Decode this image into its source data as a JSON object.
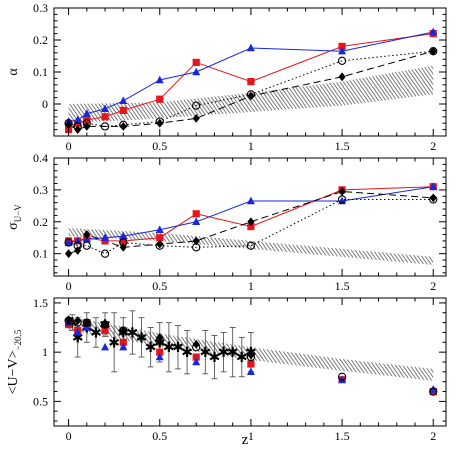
{
  "figure": {
    "shared_xlabel": "z",
    "colors": {
      "red": "#e8141c",
      "blue": "#1428e0",
      "black": "#000000",
      "hatch": "#444444"
    }
  },
  "chart_data": [
    {
      "type": "line",
      "ylabel": "α",
      "xlim": [
        -0.08,
        2.07
      ],
      "ylim": [
        -0.1,
        0.3
      ],
      "xticks": [
        0,
        0.5,
        1,
        1.5,
        2
      ],
      "xtick_labels": [
        "0",
        "0.5",
        "1",
        "1.5",
        "2"
      ],
      "yticks": [
        0,
        0.1,
        0.2,
        0.3
      ],
      "ytick_labels": [
        "0",
        "0.1",
        "0.2",
        "0.3"
      ],
      "band": {
        "x": [
          0,
          0.5,
          1,
          1.5,
          2
        ],
        "upper": [
          0.0,
          0.005,
          0.035,
          0.07,
          0.12
        ],
        "lower": [
          -0.06,
          -0.045,
          -0.025,
          -0.005,
          0.03
        ]
      },
      "series": [
        {
          "color": "red",
          "marker": "square",
          "line": "solid",
          "x": [
            0,
            0.05,
            0.1,
            0.2,
            0.3,
            0.5,
            0.7,
            1.0,
            1.5,
            2.0
          ],
          "y": [
            -0.08,
            -0.06,
            -0.05,
            -0.04,
            -0.02,
            0.015,
            0.13,
            0.07,
            0.18,
            0.22
          ]
        },
        {
          "color": "blue",
          "marker": "triangle",
          "line": "solid",
          "x": [
            0,
            0.05,
            0.1,
            0.2,
            0.3,
            0.5,
            0.7,
            1.0,
            1.5,
            2.0
          ],
          "y": [
            -0.055,
            -0.05,
            -0.03,
            -0.015,
            0.01,
            0.075,
            0.1,
            0.175,
            0.165,
            0.225
          ]
        },
        {
          "color": "black",
          "marker": "circle",
          "line": "dotted",
          "x": [
            0,
            0.05,
            0.1,
            0.2,
            0.3,
            0.5,
            0.7,
            1.0,
            1.5,
            2.0
          ],
          "y": [
            -0.06,
            -0.07,
            -0.06,
            -0.07,
            -0.065,
            -0.055,
            -0.005,
            0.03,
            0.135,
            0.165
          ]
        },
        {
          "color": "black",
          "marker": "diamond",
          "line": "dashed",
          "x": [
            0,
            0.05,
            0.1,
            0.3,
            0.5,
            0.7,
            1.0,
            1.5,
            2.0
          ],
          "y": [
            -0.065,
            -0.08,
            -0.07,
            -0.07,
            -0.06,
            -0.045,
            0.025,
            0.085,
            0.165
          ]
        }
      ]
    },
    {
      "type": "line",
      "ylabel": "σ",
      "ylabel_sub": "U−V",
      "xlim": [
        -0.08,
        2.07
      ],
      "ylim": [
        0.03,
        0.4
      ],
      "xticks": [
        0,
        0.5,
        1,
        1.5,
        2
      ],
      "xtick_labels": [
        "0",
        "0.5",
        "1",
        "1.5",
        "2"
      ],
      "yticks": [
        0.1,
        0.2,
        0.3,
        0.4
      ],
      "ytick_labels": [
        "0.1",
        "0.2",
        "0.3",
        "0.4"
      ],
      "band": {
        "x": [
          0,
          0.5,
          1,
          1.5,
          2
        ],
        "upper": [
          0.18,
          0.165,
          0.14,
          0.115,
          0.09
        ],
        "lower": [
          0.155,
          0.14,
          0.115,
          0.09,
          0.065
        ]
      },
      "series": [
        {
          "color": "red",
          "marker": "square",
          "line": "solid",
          "x": [
            0,
            0.05,
            0.1,
            0.2,
            0.3,
            0.5,
            0.7,
            1.0,
            1.5,
            2.0
          ],
          "y": [
            0.14,
            0.14,
            0.15,
            0.14,
            0.14,
            0.15,
            0.225,
            0.185,
            0.3,
            0.31
          ]
        },
        {
          "color": "blue",
          "marker": "triangle",
          "line": "solid",
          "x": [
            0,
            0.05,
            0.1,
            0.2,
            0.3,
            0.5,
            0.7,
            1.0,
            1.5,
            2.0
          ],
          "y": [
            0.135,
            0.14,
            0.145,
            0.15,
            0.155,
            0.175,
            0.2,
            0.265,
            0.265,
            0.31
          ]
        },
        {
          "color": "black",
          "marker": "circle",
          "line": "dotted",
          "x": [
            0,
            0.05,
            0.1,
            0.2,
            0.3,
            0.5,
            0.7,
            1.0,
            1.5,
            2.0
          ],
          "y": [
            0.135,
            0.125,
            0.125,
            0.1,
            0.135,
            0.125,
            0.12,
            0.125,
            0.27,
            0.27
          ]
        },
        {
          "color": "black",
          "marker": "diamond",
          "line": "dashed",
          "x": [
            0,
            0.05,
            0.1,
            0.3,
            0.5,
            0.7,
            1.0,
            1.5,
            2.0
          ],
          "y": [
            0.1,
            0.11,
            0.16,
            0.12,
            0.13,
            0.14,
            0.2,
            0.295,
            0.275
          ]
        }
      ]
    },
    {
      "type": "scatter",
      "ylabel": "<U−V>",
      "ylabel_sub": "−20.5",
      "xlim": [
        -0.08,
        2.07
      ],
      "ylim": [
        0.25,
        1.55
      ],
      "xticks": [
        0,
        0.5,
        1,
        1.5,
        2
      ],
      "xtick_labels": [
        "0",
        "0.5",
        "1",
        "1.5",
        "2"
      ],
      "yticks": [
        0.5,
        1,
        1.5
      ],
      "ytick_labels": [
        "0.5",
        "1",
        "1.5"
      ],
      "band": {
        "x": [
          0,
          0.5,
          1,
          1.5,
          2
        ],
        "upper": [
          1.36,
          1.19,
          1.05,
          0.93,
          0.83
        ],
        "lower": [
          1.22,
          1.06,
          0.92,
          0.81,
          0.71
        ]
      },
      "observations": [
        {
          "x": 0.02,
          "y": 1.3,
          "err": 0.08
        },
        {
          "x": 0.05,
          "y": 1.15,
          "err": 0.2
        },
        {
          "x": 0.1,
          "y": 1.25,
          "err": 0.15
        },
        {
          "x": 0.15,
          "y": 1.2,
          "err": 0.15
        },
        {
          "x": 0.2,
          "y": 1.28,
          "err": 0.12
        },
        {
          "x": 0.25,
          "y": 1.1,
          "err": 0.3
        },
        {
          "x": 0.3,
          "y": 1.2,
          "err": 0.15
        },
        {
          "x": 0.35,
          "y": 1.2,
          "err": 0.22
        },
        {
          "x": 0.4,
          "y": 1.15,
          "err": 0.2
        },
        {
          "x": 0.45,
          "y": 1.05,
          "err": 0.2
        },
        {
          "x": 0.5,
          "y": 1.1,
          "err": 0.2
        },
        {
          "x": 0.55,
          "y": 1.05,
          "err": 0.25
        },
        {
          "x": 0.6,
          "y": 1.05,
          "err": 0.22
        },
        {
          "x": 0.65,
          "y": 1.0,
          "err": 0.22
        },
        {
          "x": 0.75,
          "y": 1.0,
          "err": 0.22
        },
        {
          "x": 0.8,
          "y": 0.95,
          "err": 0.22
        },
        {
          "x": 0.85,
          "y": 1.0,
          "err": 0.2
        },
        {
          "x": 0.9,
          "y": 1.0,
          "err": 0.25
        },
        {
          "x": 0.95,
          "y": 0.95,
          "err": 0.2
        },
        {
          "x": 1.0,
          "y": 1.0,
          "err": 0.2
        }
      ],
      "series": [
        {
          "color": "red",
          "marker": "square",
          "x": [
            0,
            0.05,
            0.1,
            0.2,
            0.3,
            0.5,
            0.7,
            1.0,
            1.5,
            2.0
          ],
          "y": [
            1.28,
            1.22,
            1.3,
            1.22,
            1.1,
            1.0,
            0.95,
            0.88,
            0.72,
            0.6
          ]
        },
        {
          "color": "blue",
          "marker": "triangle",
          "x": [
            0,
            0.05,
            0.1,
            0.2,
            0.3,
            0.5,
            0.7,
            1.0,
            1.5,
            2.0
          ],
          "y": [
            1.3,
            1.2,
            1.25,
            1.05,
            1.05,
            0.95,
            0.9,
            0.8,
            0.72,
            0.62
          ]
        },
        {
          "color": "black",
          "marker": "circle",
          "x": [
            0,
            0.05,
            0.1,
            0.2,
            0.3,
            0.5,
            0.7,
            1.0,
            1.5,
            2.0
          ],
          "y": [
            1.32,
            1.3,
            1.3,
            1.28,
            1.22,
            1.12,
            1.05,
            0.95,
            0.75,
            0.6
          ]
        },
        {
          "color": "black",
          "marker": "diamond",
          "x": [
            0,
            0.05,
            0.1,
            0.2,
            0.3,
            0.5,
            0.7,
            1.0
          ],
          "y": [
            1.33,
            1.32,
            1.3,
            1.28,
            1.22,
            1.15,
            1.08,
            0.97
          ]
        }
      ]
    }
  ]
}
